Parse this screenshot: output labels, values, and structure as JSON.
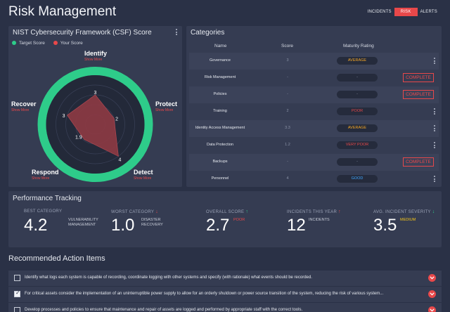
{
  "page": {
    "title": "Risk Management"
  },
  "nav": {
    "tabs": [
      {
        "label": "INCIDENTS"
      },
      {
        "label": "RISK"
      },
      {
        "label": "ALERTS"
      }
    ]
  },
  "csf": {
    "title": "NIST Cybersecurity Framework (CSF) Score",
    "legend": {
      "target": "Target Score",
      "yours": "Your Score"
    },
    "colors": {
      "target": "#2ecc8a",
      "yours": "#e8484a"
    },
    "show_more": "Show More",
    "axes": [
      {
        "label": "Identify",
        "score": 3
      },
      {
        "label": "Protect",
        "score": 2
      },
      {
        "label": "Detect",
        "score": 4
      },
      {
        "label": "Respond",
        "score": 1.9
      },
      {
        "label": "Recover",
        "score": 3
      }
    ],
    "score_labels": [
      "3",
      "2",
      "4",
      "1.9",
      "3"
    ],
    "target_score": 5,
    "max_score": 5
  },
  "categories": {
    "title": "Categories",
    "headers": {
      "name": "Name",
      "score": "Score",
      "rating": "Maturity Rating"
    },
    "complete_label": "COMPLETE",
    "rows": [
      {
        "name": "Governance",
        "score": "3",
        "rating": "AVERAGE",
        "rating_color": "#f5a623",
        "action": "menu"
      },
      {
        "name": "Risk Management",
        "score": "-",
        "rating": "-",
        "rating_color": "#8a92a6",
        "action": "complete"
      },
      {
        "name": "Policies",
        "score": "-",
        "rating": "-",
        "rating_color": "#8a92a6",
        "action": "complete"
      },
      {
        "name": "Training",
        "score": "2",
        "rating": "POOR",
        "rating_color": "#e8484a",
        "action": "menu"
      },
      {
        "name": "Identity Access Management",
        "score": "3.3",
        "rating": "AVERAGE",
        "rating_color": "#f5a623",
        "action": "menu"
      },
      {
        "name": "Data Protection",
        "score": "1.2",
        "rating": "VERY POOR",
        "rating_color": "#e8484a",
        "action": "menu"
      },
      {
        "name": "Backups",
        "score": "-",
        "rating": "-",
        "rating_color": "#8a92a6",
        "action": "complete"
      },
      {
        "name": "Personnel",
        "score": "4",
        "rating": "GOOD",
        "rating_color": "#3ea6ff",
        "action": "menu"
      }
    ]
  },
  "performance": {
    "title": "Performance Tracking",
    "metrics": [
      {
        "label": "BEST CATEGORY",
        "value": "4.2",
        "desc": "VULNERABILITY\nMANAGEMENT",
        "desc_color": "#c9ced9",
        "arrow": "",
        "arrow_color": ""
      },
      {
        "label": "WORST CATEGORY",
        "value": "1.0",
        "desc": "DISASTER\nRECOVERY",
        "desc_color": "#c9ced9",
        "arrow": "↓",
        "arrow_color": "#e8484a"
      },
      {
        "label": "OVERALL SCORE",
        "value": "2.7",
        "desc": "POOR",
        "desc_color": "#e8484a",
        "arrow": "↑",
        "arrow_color": "#2ecc8a"
      },
      {
        "label": "INCIDENTS THIS YEAR",
        "value": "12",
        "desc": "INCIDENTS",
        "desc_color": "#c9ced9",
        "arrow": "↑",
        "arrow_color": "#e8484a"
      },
      {
        "label": "AVG. INCIDENT SEVERITY",
        "value": "3.5",
        "desc": "MEDIUM",
        "desc_color": "#f5c518",
        "arrow": "↓",
        "arrow_color": "#2ecc8a"
      }
    ]
  },
  "recommended": {
    "title": "Recommended Action Items",
    "items": [
      {
        "checked": false,
        "text": "Identify what logs each system is capable of recording, coordinate logging with other systems and specify (with rationale) what events should be recorded."
      },
      {
        "checked": true,
        "text": "For critical assets consider the implementation of an uninterruptible power supply to allow for an orderly shutdown or power source transition of the system, reducing the risk of various system..."
      },
      {
        "checked": false,
        "text": "Develop processes and policies to ensure that maintenance and repair of assets are logged and performed by appropriate staff with the correct tools."
      }
    ]
  }
}
